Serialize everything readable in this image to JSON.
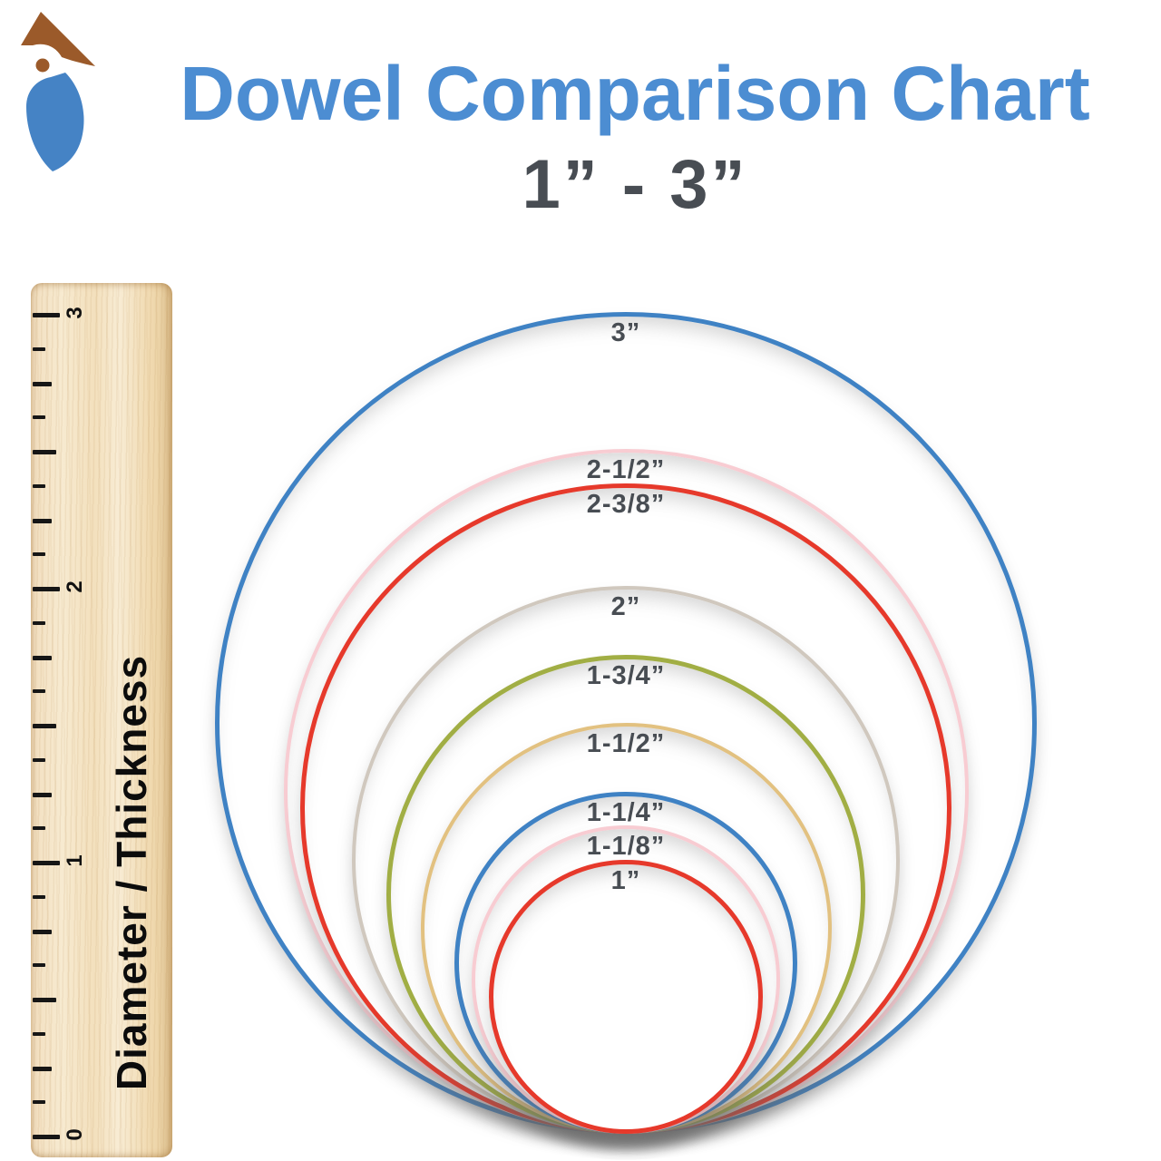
{
  "header": {
    "title": "Dowel Comparison Chart",
    "subtitle": "1” - 3”",
    "title_color": "#4c8dd2",
    "subtitle_color": "#484d53"
  },
  "logo": {
    "name": "woodpecker-logo",
    "head_color": "#9b5a2a",
    "body_color": "#4583c5"
  },
  "ruler": {
    "caption": "Diameter / Thickness",
    "numbers": [
      {
        "label": "0",
        "inches": 0
      },
      {
        "label": "1",
        "inches": 1
      },
      {
        "label": "2",
        "inches": 2
      },
      {
        "label": "3",
        "inches": 3
      }
    ],
    "units_per_side": 3,
    "subdivision": "eighths",
    "wood_color": "#f3e0bd",
    "tick_color": "#161616"
  },
  "circles": {
    "label_color": "#484d53",
    "items": [
      {
        "label": "3”",
        "inches": 3,
        "color": "#3f82c4",
        "stroke": 5
      },
      {
        "label": "2-1/2”",
        "inches": 2.5,
        "color": "#f8ccd2",
        "stroke": 4
      },
      {
        "label": "2-3/8”",
        "inches": 2.375,
        "color": "#e6392b",
        "stroke": 5
      },
      {
        "label": "2”",
        "inches": 2,
        "color": "#d0c8be",
        "stroke": 4
      },
      {
        "label": "1-3/4”",
        "inches": 1.75,
        "color": "#a1ae44",
        "stroke": 5
      },
      {
        "label": "1-1/2”",
        "inches": 1.5,
        "color": "#e2c180",
        "stroke": 4
      },
      {
        "label": "1-1/4”",
        "inches": 1.25,
        "color": "#3f82c4",
        "stroke": 5
      },
      {
        "label": "1-1/8”",
        "inches": 1.125,
        "color": "#f8ccd2",
        "stroke": 4
      },
      {
        "label": "1”",
        "inches": 1,
        "color": "#e6392b",
        "stroke": 5
      }
    ]
  }
}
